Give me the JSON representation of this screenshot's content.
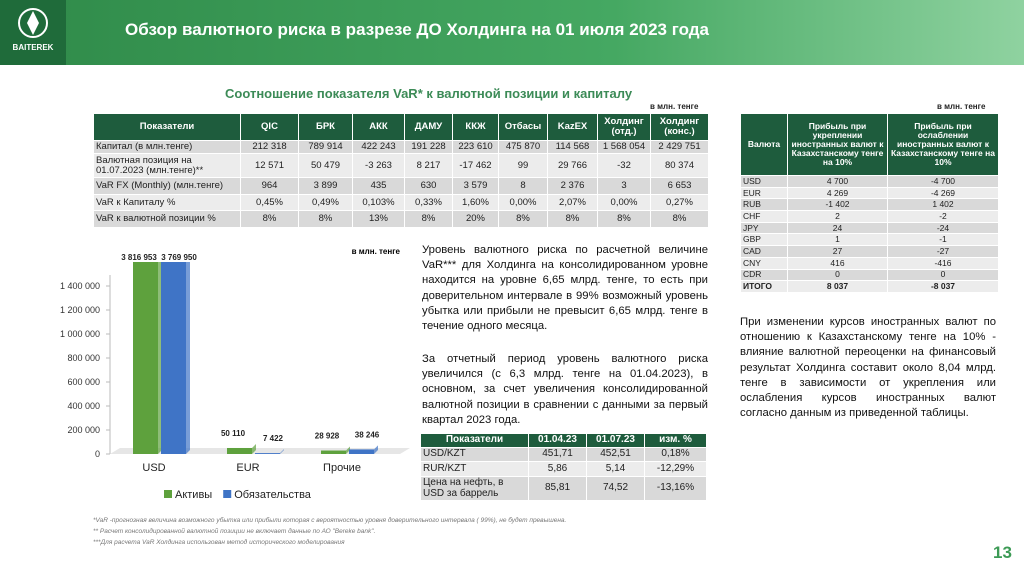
{
  "header": {
    "logo": "BAITEREK",
    "title": "Обзор валютного риска в разрезе ДО Холдинга на 01 июля 2023 года"
  },
  "subtitle": "Соотношение показателя VaR* к  валютной позиции и капиталу",
  "main_table": {
    "unit": "в млн. тенге",
    "header": [
      "Показатели",
      "QIC",
      "БРК",
      "АКК",
      "ДАМУ",
      "ККЖ",
      "Отбасы",
      "KazEX",
      "Холдинг (отд.)",
      "Холдинг (конс.)"
    ],
    "rows": [
      [
        "Капитал (в млн.тенге)",
        "212 318",
        "789 914",
        "422 243",
        "191 228",
        "223 610",
        "475 870",
        "114 568",
        "1 568 054",
        "2 429 751"
      ],
      [
        "Валютная позиция на 01.07.2023 (млн.тенге)**",
        "12 571",
        "50 479",
        "-3 263",
        "8 217",
        "-17 462",
        "99",
        "29 766",
        "-32",
        "80 374"
      ],
      [
        "VaR FX (Monthly) (млн.тенге)",
        "964",
        "3 899",
        "435",
        "630",
        "3 579",
        "8",
        "2 376",
        "3",
        "6 653"
      ],
      [
        "VaR к Капиталу %",
        "0,45%",
        "0,49%",
        "0,103%",
        "0,33%",
        "1,60%",
        "0,00%",
        "2,07%",
        "0,00%",
        "0,27%"
      ],
      [
        "VaR к валютной позиции %",
        "8%",
        "8%",
        "13%",
        "8%",
        "20%",
        "8%",
        "8%",
        "8%",
        "8%"
      ]
    ]
  },
  "fx_table": {
    "unit": "в млн. тенге",
    "header": [
      "Валюта",
      "Прибыль при укреплении иностранных валют к Казахстанскому тенге на 10%",
      "Прибыль при ослаблении иностранных валют к Казахстанскому тенге на 10%"
    ],
    "rows": [
      [
        "USD",
        "4 700",
        "-4 700"
      ],
      [
        "EUR",
        "4 269",
        "-4 269"
      ],
      [
        "RUB",
        "-1 402",
        "1 402"
      ],
      [
        "CHF",
        "2",
        "-2"
      ],
      [
        "JPY",
        "24",
        "-24"
      ],
      [
        "GBP",
        "1",
        "-1"
      ],
      [
        "CAD",
        "27",
        "-27"
      ],
      [
        "CNY",
        "416",
        "-416"
      ],
      [
        "CDR",
        "0",
        "0"
      ],
      [
        "ИТОГО",
        "8 037",
        "-8 037"
      ]
    ]
  },
  "chart_data": {
    "type": "bar",
    "annotation": "в млн. тенге",
    "categories": [
      "USD",
      "EUR",
      "Прочие"
    ],
    "series": [
      {
        "name": "Активы",
        "color": "#5ea13d",
        "values": [
          3816953,
          50110,
          28928
        ],
        "value_labels": [
          "3 816 953",
          "50 110",
          "28 928"
        ]
      },
      {
        "name": "Обязательства",
        "color": "#3f74c6",
        "values": [
          3769950,
          7422,
          38246
        ],
        "value_labels": [
          "3 769 950",
          "7 422",
          "38 246"
        ]
      }
    ],
    "ylim": [
      0,
      1400000
    ],
    "yticks": [
      0,
      {
        "value": 200000,
        "label": "200 000"
      },
      {
        "value": 400000,
        "label": "400 000"
      },
      {
        "value": 600000,
        "label": "600 000"
      },
      {
        "value": 800000,
        "label": "800 000"
      },
      {
        "value": 1000000,
        "label": "1 000 000"
      },
      {
        "value": 1200000,
        "label": "1 200 000"
      },
      {
        "value": 1400000,
        "label": "1 400 000"
      }
    ],
    "legend": "bottom"
  },
  "paragraphs": [
    "Уровень валютного риска по расчетной величине VaR*** для Холдинга на консолидированном уровне находится на уровне 6,65 млрд. тенге, то есть  при доверительном интервале в 99% возможный уровень убытка или прибыли не превысит 6,65 млрд. тенге в течение одного месяца.",
    "За отчетный период уровень валютного риска увеличился (с 6,3 млрд. тенге на 01.04.2023), в основном, за счет увеличения консолидированной валютной позиции в сравнении с данными за первый квартал 2023 года."
  ],
  "rate_table": {
    "header": [
      "Показатели",
      "01.04.23",
      "01.07.23",
      "изм. %"
    ],
    "rows": [
      [
        "USD/KZT",
        "451,71",
        "452,51",
        "0,18%"
      ],
      [
        "RUR/KZT",
        "5,86",
        "5,14",
        "-12,29%"
      ],
      [
        "Цена на нефть, в USD за баррель",
        "85,81",
        "74,52",
        "-13,16%"
      ]
    ]
  },
  "note": "При изменении курсов иностранных валют по отношению к Казахстанскому тенге на 10% - влияние валютной переоценки на финансовый результат Холдинга составит около 8,04 млрд. тенге в зависимости от укрепления или ослабления курсов иностранных валют согласно данным из приведенной таблицы.",
  "footnotes": [
    "*VaR -прогнозная величина возможного  убытка или прибыли которая с вероятностью уровня доверительного интервала ( 99%), не будет превышена.",
    "** Расчет консолидированной валютной позиции не включает данные по АО \"Bereke bank\".",
    "***Для расчета VaR Холдинга использован метод исторического моделирования"
  ],
  "page_number": "13"
}
